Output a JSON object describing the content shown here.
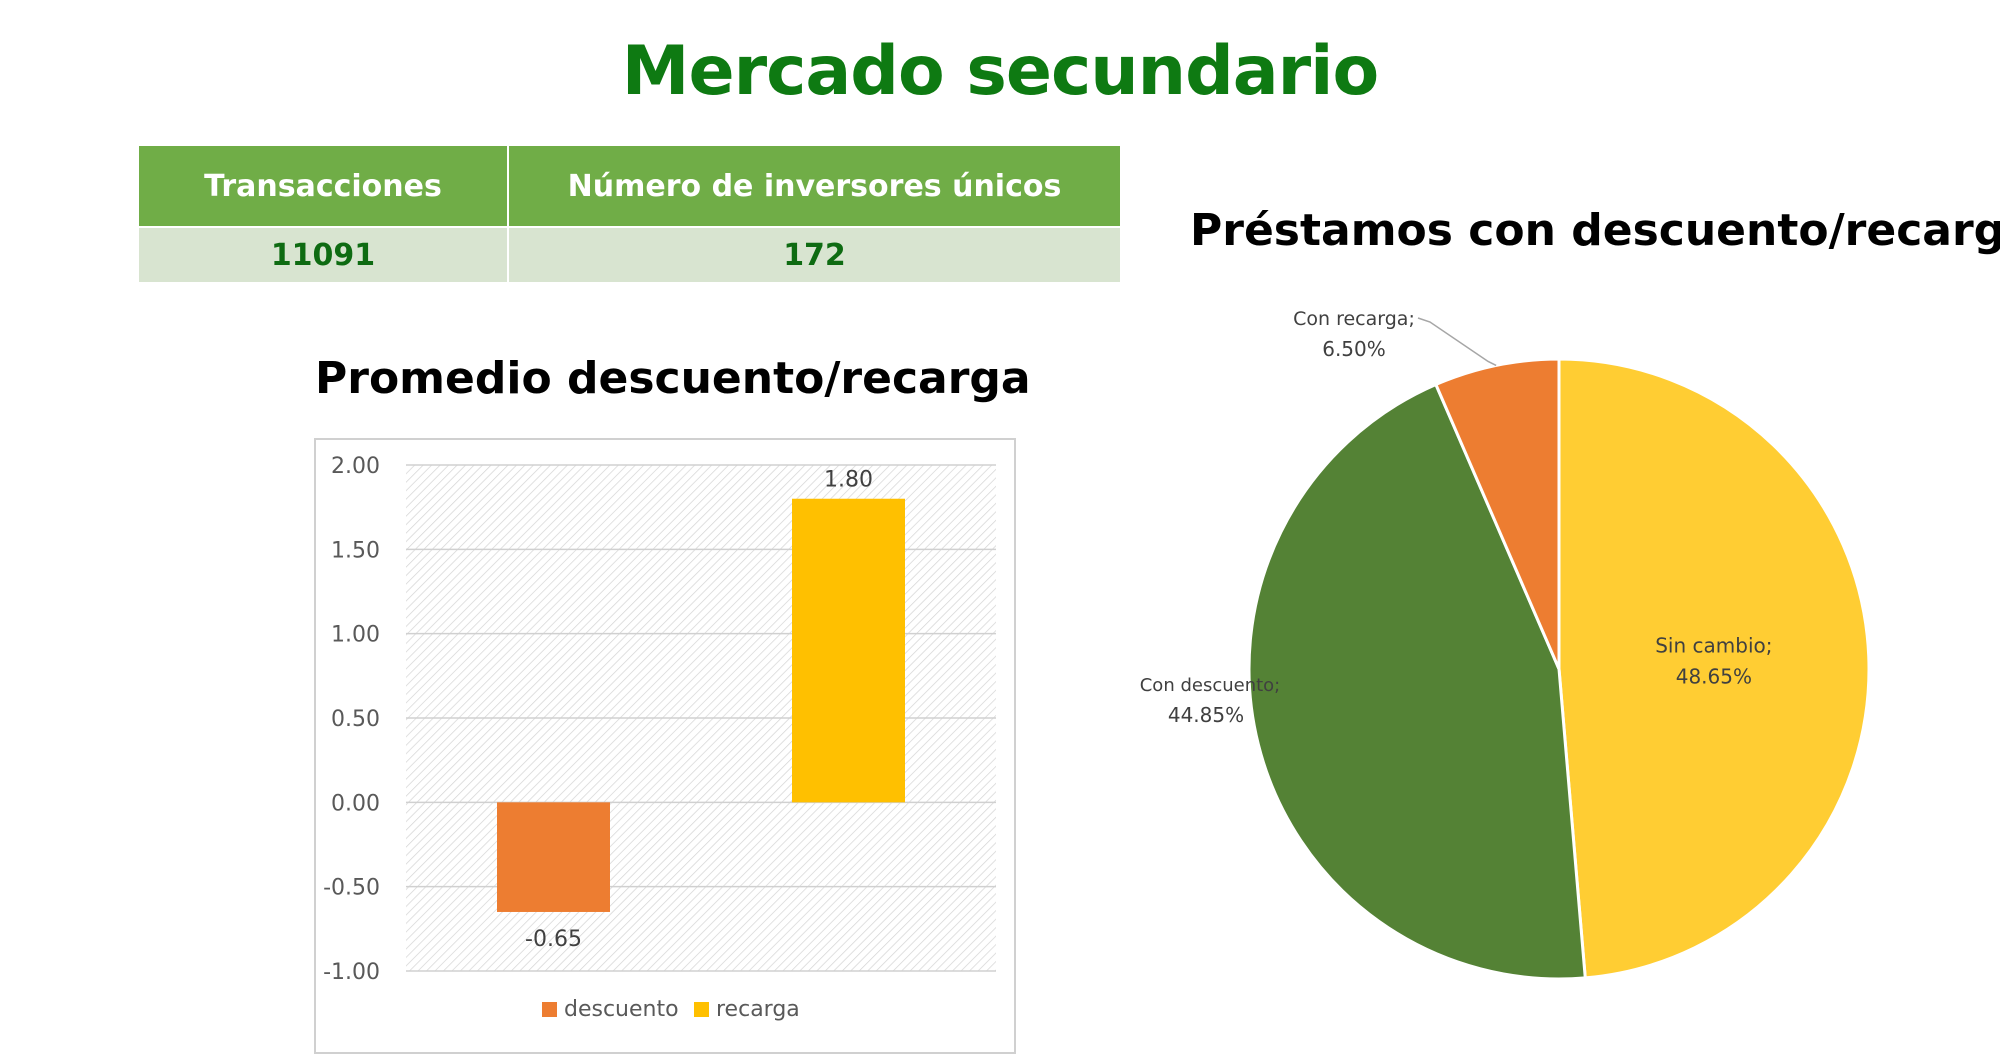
{
  "page": {
    "title": "Mercado secundario"
  },
  "stats_table": {
    "headers": [
      "Transacciones",
      "Número de inversores únicos"
    ],
    "values": [
      "11091",
      "172"
    ]
  },
  "colors": {
    "title_green": "#0e7a12",
    "header_green": "#70ad47",
    "row_green": "#d8e4d0",
    "descuento": "#ed7d31",
    "recarga": "#ffc000",
    "sin_cambio": "#ffcd33",
    "con_descuento": "#548235",
    "con_recarga": "#ed7d31"
  },
  "chart_data": [
    {
      "type": "bar",
      "title": "Promedio descuento/recarga",
      "categories": [
        "descuento",
        "recarga"
      ],
      "values": [
        -0.65,
        1.8
      ],
      "data_labels": [
        "-0.65",
        "1.80"
      ],
      "ylim": [
        -1.0,
        2.0
      ],
      "yticks": [
        "2.00",
        "1.50",
        "1.00",
        "0.50",
        "0.00",
        "-0.50",
        "-1.00"
      ],
      "grid": true,
      "legend": {
        "position": "bottom",
        "entries": [
          "descuento",
          "recarga"
        ]
      }
    },
    {
      "type": "pie",
      "title": "Préstamos con descuento/recarga",
      "slices": [
        {
          "label": "Sin cambio;",
          "value": 48.65,
          "display": "48.65%"
        },
        {
          "label": "Con descuento;",
          "value": 44.85,
          "display": "44.85%"
        },
        {
          "label": "Con recarga;",
          "value": 6.5,
          "display": "6.50%"
        }
      ]
    }
  ]
}
